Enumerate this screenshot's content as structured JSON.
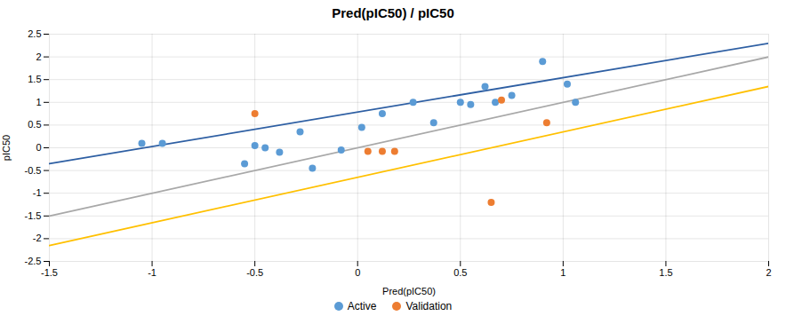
{
  "chart_data": {
    "type": "scatter",
    "title": "Pred(pIC50) / pIC50",
    "xlabel": "Pred(pIC50)",
    "ylabel": "pIC50",
    "xlim": [
      -1.5,
      2.0
    ],
    "ylim": [
      -2.5,
      2.5
    ],
    "xticks": [
      -1.5,
      -1,
      -0.5,
      0,
      0.5,
      1,
      1.5,
      2
    ],
    "yticks": [
      -2.5,
      -2,
      -1.5,
      -1,
      -0.5,
      0,
      0.5,
      1,
      1.5,
      2,
      2.5
    ],
    "grid": true,
    "series": [
      {
        "type": "line",
        "color": "#A8A8A8",
        "x": [
          -1.5,
          2.0
        ],
        "y": [
          -1.5,
          2.0
        ]
      },
      {
        "type": "line",
        "color": "#2E5FA3",
        "x": [
          -1.5,
          2.0
        ],
        "y": [
          -0.35,
          2.3
        ]
      },
      {
        "type": "line",
        "color": "#FFC000",
        "x": [
          -1.5,
          2.0
        ],
        "y": [
          -2.15,
          1.35
        ]
      },
      {
        "type": "scatter",
        "name": "Active",
        "color": "#5B9BD5",
        "x": [
          -1.05,
          -0.95,
          -0.55,
          -0.5,
          -0.45,
          -0.38,
          -0.28,
          -0.22,
          -0.08,
          0.02,
          0.12,
          0.27,
          0.37,
          0.5,
          0.55,
          0.62,
          0.67,
          0.75,
          0.9,
          1.02,
          1.06
        ],
        "y": [
          0.1,
          0.1,
          -0.35,
          0.05,
          0.0,
          -0.1,
          0.35,
          -0.45,
          -0.05,
          0.45,
          0.75,
          1.0,
          0.55,
          1.0,
          0.95,
          1.35,
          1.0,
          1.15,
          1.9,
          1.4,
          1.0
        ]
      },
      {
        "type": "scatter",
        "name": "Validation",
        "color": "#ED7D31",
        "x": [
          -0.5,
          0.05,
          0.12,
          0.18,
          0.7,
          0.92,
          0.65
        ],
        "y": [
          0.75,
          -0.08,
          -0.08,
          -0.08,
          1.05,
          0.55,
          -1.2
        ]
      }
    ]
  }
}
